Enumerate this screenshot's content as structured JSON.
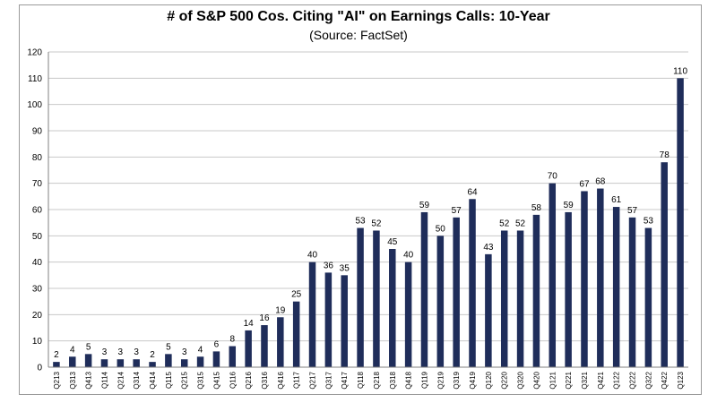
{
  "chart_data": {
    "type": "bar",
    "title": "# of S&P 500 Cos. Citing \"AI\" on Earnings Calls: 10-Year",
    "subtitle": "(Source: FactSet)",
    "xlabel": "",
    "ylabel": "",
    "ylim": [
      0,
      120
    ],
    "yticks": [
      0,
      10,
      20,
      30,
      40,
      50,
      60,
      70,
      80,
      90,
      100,
      110,
      120
    ],
    "grid": true,
    "bar_color": "#1f2d5a",
    "grid_color": "#c8c8c8",
    "categories": [
      "Q213",
      "Q313",
      "Q413",
      "Q114",
      "Q214",
      "Q314",
      "Q414",
      "Q115",
      "Q215",
      "Q315",
      "Q415",
      "Q116",
      "Q216",
      "Q316",
      "Q416",
      "Q117",
      "Q217",
      "Q317",
      "Q417",
      "Q118",
      "Q218",
      "Q318",
      "Q418",
      "Q119",
      "Q219",
      "Q319",
      "Q419",
      "Q120",
      "Q220",
      "Q320",
      "Q420",
      "Q121",
      "Q221",
      "Q321",
      "Q421",
      "Q122",
      "Q222",
      "Q322",
      "Q422",
      "Q123"
    ],
    "values": [
      2,
      4,
      5,
      3,
      3,
      3,
      2,
      5,
      3,
      4,
      6,
      8,
      14,
      16,
      19,
      25,
      40,
      36,
      35,
      53,
      52,
      45,
      40,
      59,
      50,
      57,
      64,
      43,
      52,
      52,
      58,
      70,
      59,
      67,
      68,
      61,
      57,
      53,
      78,
      110
    ]
  }
}
